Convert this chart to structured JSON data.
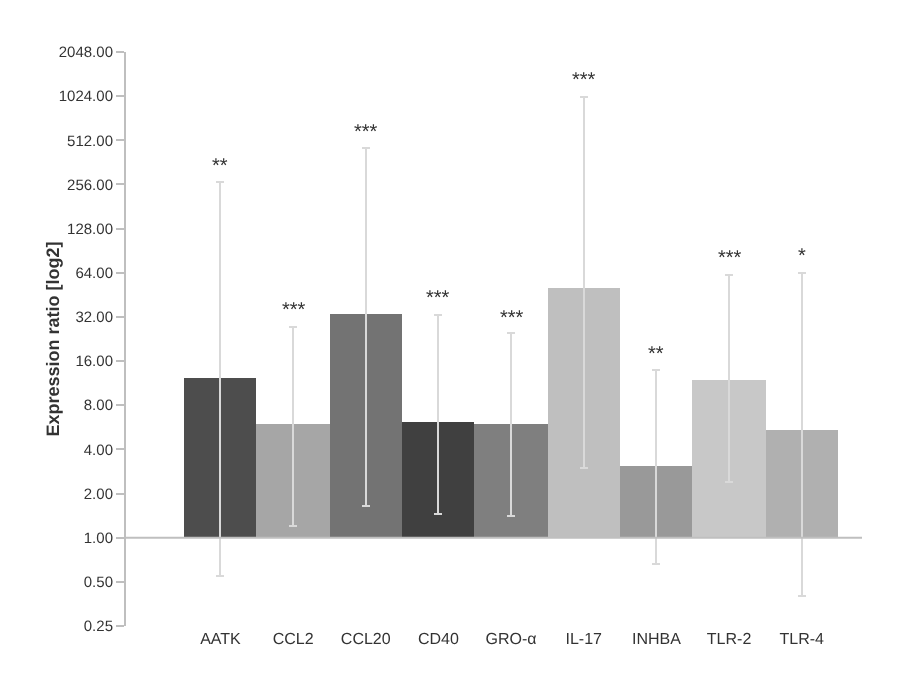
{
  "chart_data": {
    "type": "bar",
    "ylabel": "Expression ratio [log2]",
    "log": true,
    "categories": [
      "AATK",
      "CCL2",
      "CCL20",
      "CD40",
      "GRO-α",
      "IL-17",
      "INHBA",
      "TLR-2",
      "TLR-4"
    ],
    "base": [
      1,
      1,
      1,
      1,
      1,
      1,
      1,
      1,
      1
    ],
    "values": [
      11.2,
      4.9,
      32,
      5.2,
      4.9,
      49,
      2.07,
      10.9,
      4.5
    ],
    "colors": [
      "#4d4d4d",
      "#a6a6a6",
      "#737373",
      "#404040",
      "#7f7f7f",
      "#bfbfbf",
      "#999999",
      "#c8c8c8",
      "#b0b0b0"
    ],
    "errors": [
      [
        0.55,
        265
      ],
      [
        1.2,
        27.5
      ],
      [
        1.65,
        455
      ],
      [
        1.46,
        33
      ],
      [
        1.4,
        24.8
      ],
      [
        3.0,
        1015
      ],
      [
        0.66,
        14
      ],
      [
        2.4,
        62
      ],
      [
        0.4,
        64
      ]
    ],
    "ylim": [
      0.25,
      2048
    ],
    "yticks": [
      {
        "value": 0.25,
        "label": "0.25"
      },
      {
        "value": 0.5,
        "label": "0.50"
      },
      {
        "value": 1,
        "label": "1.00"
      },
      {
        "value": 2,
        "label": "2.00"
      },
      {
        "value": 4,
        "label": "4.00"
      },
      {
        "value": 8,
        "label": "8.00"
      },
      {
        "value": 16,
        "label": "16.00"
      },
      {
        "value": 32,
        "label": "32.00"
      },
      {
        "value": 64,
        "label": "64.00"
      },
      {
        "value": 128,
        "label": "128.00"
      },
      {
        "value": 256,
        "label": "256.00"
      },
      {
        "value": 512,
        "label": "512.00"
      },
      {
        "value": 1024,
        "label": "1024.00"
      },
      {
        "value": 2048,
        "label": "2048.00"
      }
    ],
    "ref_lines": [
      {
        "axis": "y",
        "value": 1,
        "color": "#bfbfbf"
      }
    ],
    "annotations": [
      {
        "text": "**",
        "x": "AATK",
        "y": 265
      },
      {
        "text": "***",
        "x": "CCL2",
        "y": 27.5
      },
      {
        "text": "***",
        "x": "CCL20",
        "y": 455
      },
      {
        "text": "***",
        "x": "CD40",
        "y": 33
      },
      {
        "text": "***",
        "x": "GRO-α",
        "y": 24.8
      },
      {
        "text": "***",
        "x": "IL-17",
        "y": 1015
      },
      {
        "text": "**",
        "x": "INHBA",
        "y": 14
      },
      {
        "text": "***",
        "x": "TLR-2",
        "y": 62
      },
      {
        "text": "*",
        "x": "TLR-4",
        "y": 64
      }
    ],
    "grid": false
  }
}
